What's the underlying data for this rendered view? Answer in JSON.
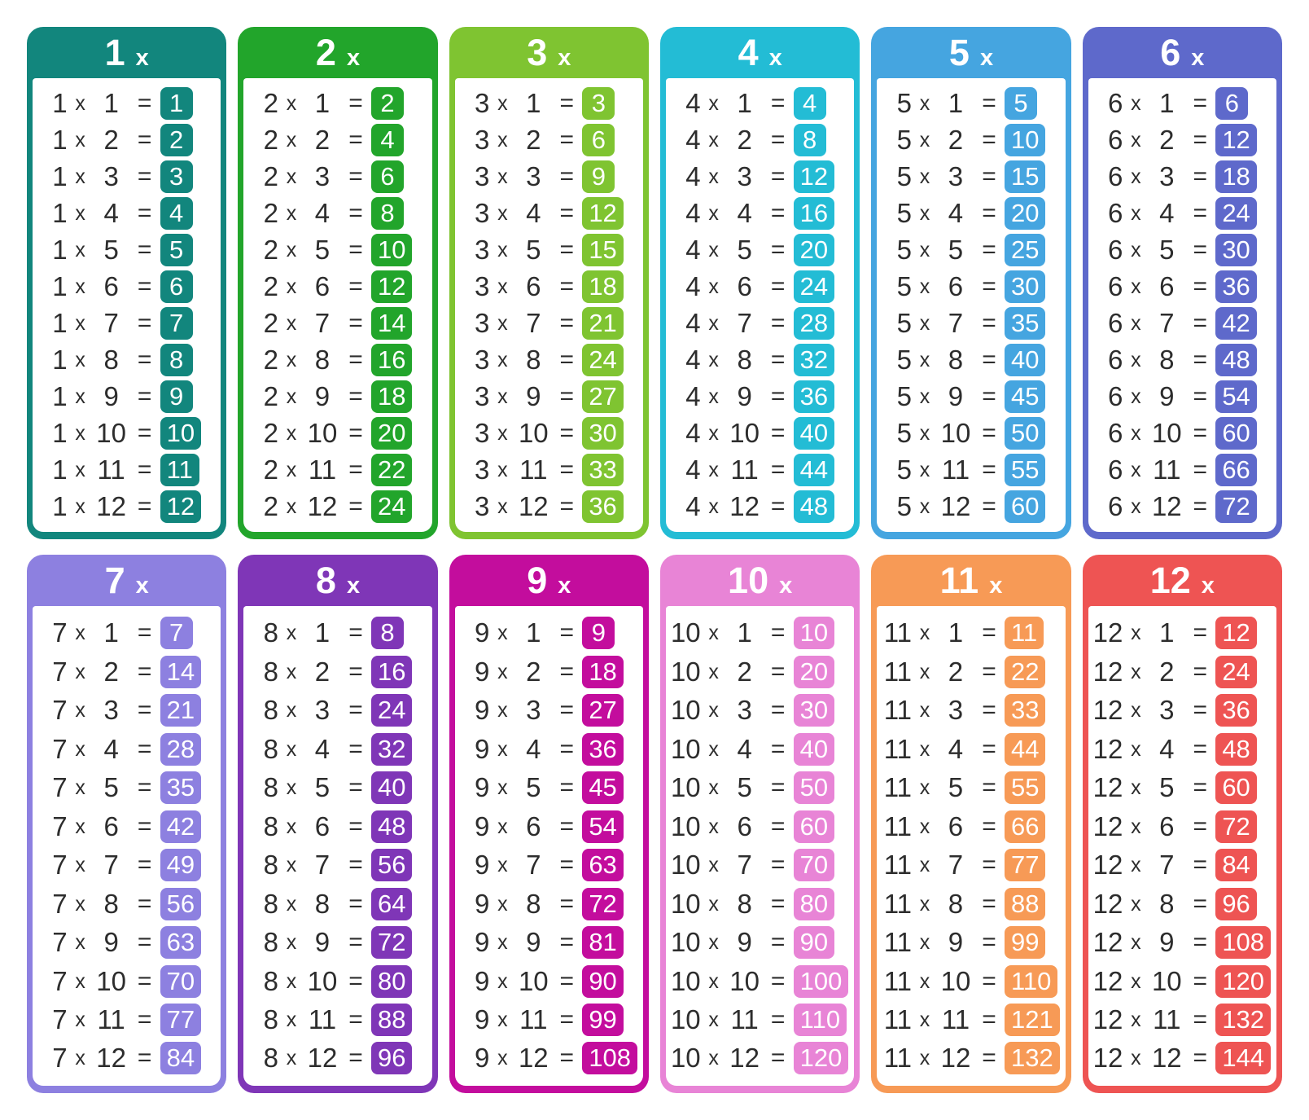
{
  "page": {
    "background": "#ffffff",
    "equation_text_color": "#2d2d2d",
    "badge_text_color": "#ffffff"
  },
  "symbols": {
    "multiply": "x",
    "equals": "="
  },
  "multipliers": [
    "1",
    "2",
    "3",
    "4",
    "5",
    "6",
    "7",
    "8",
    "9",
    "10",
    "11",
    "12"
  ],
  "tables": [
    {
      "n": "1",
      "title": "1 x",
      "color": "#12867D",
      "products": [
        "1",
        "2",
        "3",
        "4",
        "5",
        "6",
        "7",
        "8",
        "9",
        "10",
        "11",
        "12"
      ]
    },
    {
      "n": "2",
      "title": "2 x",
      "color": "#22A52B",
      "products": [
        "2",
        "4",
        "6",
        "8",
        "10",
        "12",
        "14",
        "16",
        "18",
        "20",
        "22",
        "24"
      ]
    },
    {
      "n": "3",
      "title": "3 x",
      "color": "#7FC431",
      "products": [
        "3",
        "6",
        "9",
        "12",
        "15",
        "18",
        "21",
        "24",
        "27",
        "30",
        "33",
        "36"
      ]
    },
    {
      "n": "4",
      "title": "4 x",
      "color": "#23BCD5",
      "products": [
        "4",
        "8",
        "12",
        "16",
        "20",
        "24",
        "28",
        "32",
        "36",
        "40",
        "44",
        "48"
      ]
    },
    {
      "n": "5",
      "title": "5 x",
      "color": "#45A5E0",
      "products": [
        "5",
        "10",
        "15",
        "20",
        "25",
        "30",
        "35",
        "40",
        "45",
        "50",
        "55",
        "60"
      ]
    },
    {
      "n": "6",
      "title": "6 x",
      "color": "#5E69CB",
      "products": [
        "6",
        "12",
        "18",
        "24",
        "30",
        "36",
        "42",
        "48",
        "54",
        "60",
        "66",
        "72"
      ]
    },
    {
      "n": "7",
      "title": "7 x",
      "color": "#8D80E0",
      "products": [
        "7",
        "14",
        "21",
        "28",
        "35",
        "42",
        "49",
        "56",
        "63",
        "70",
        "77",
        "84"
      ]
    },
    {
      "n": "8",
      "title": "8 x",
      "color": "#7F36B7",
      "products": [
        "8",
        "16",
        "24",
        "32",
        "40",
        "48",
        "56",
        "64",
        "72",
        "80",
        "88",
        "96"
      ]
    },
    {
      "n": "9",
      "title": "9 x",
      "color": "#C30D9D",
      "products": [
        "9",
        "18",
        "27",
        "36",
        "45",
        "54",
        "63",
        "72",
        "81",
        "90",
        "99",
        "108"
      ]
    },
    {
      "n": "10",
      "title": "10 x",
      "color": "#E884D6",
      "products": [
        "10",
        "20",
        "30",
        "40",
        "50",
        "60",
        "70",
        "80",
        "90",
        "100",
        "110",
        "120"
      ]
    },
    {
      "n": "11",
      "title": "11 x",
      "color": "#F79A56",
      "products": [
        "11",
        "22",
        "33",
        "44",
        "55",
        "66",
        "77",
        "88",
        "99",
        "110",
        "121",
        "132"
      ]
    },
    {
      "n": "12",
      "title": "12 x",
      "color": "#EE5453",
      "products": [
        "12",
        "24",
        "36",
        "48",
        "60",
        "72",
        "84",
        "96",
        "108",
        "120",
        "132",
        "144"
      ]
    }
  ]
}
